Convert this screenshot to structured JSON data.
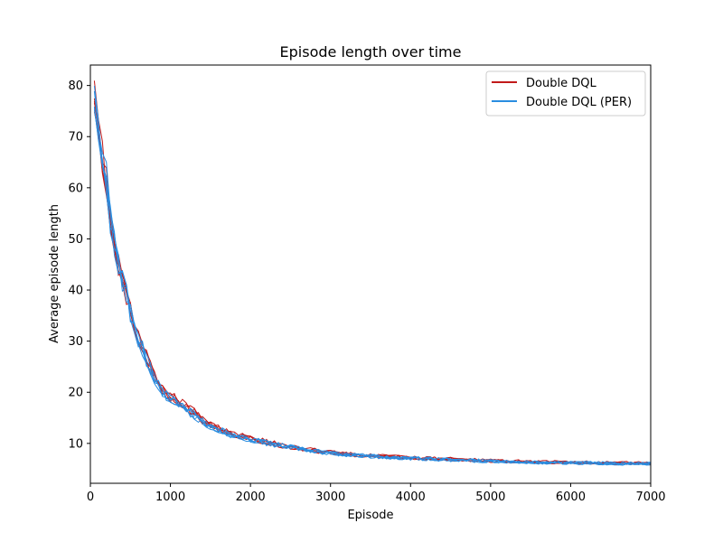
{
  "chart_data": {
    "type": "line",
    "title": "Episode length over time",
    "xlabel": "Episode",
    "ylabel": "Average episode length",
    "xlim": [
      0,
      7000
    ],
    "ylim": [
      2.2,
      84.0
    ],
    "xticks": [
      0,
      1000,
      2000,
      3000,
      4000,
      5000,
      6000,
      7000
    ],
    "yticks": [
      10,
      20,
      30,
      40,
      50,
      60,
      70,
      80
    ],
    "grid": false,
    "legend_position": "top-right",
    "series": [
      {
        "name": "Double DQL",
        "color": "#c21a1a",
        "runs": 5,
        "points": [
          [
            50,
            77
          ],
          [
            100,
            71
          ],
          [
            150,
            66
          ],
          [
            200,
            61
          ],
          [
            250,
            53
          ],
          [
            300,
            48
          ],
          [
            350,
            45
          ],
          [
            400,
            42
          ],
          [
            450,
            39
          ],
          [
            500,
            36
          ],
          [
            600,
            31
          ],
          [
            700,
            27
          ],
          [
            800,
            23
          ],
          [
            900,
            20.5
          ],
          [
            1000,
            19
          ],
          [
            1100,
            18.5
          ],
          [
            1200,
            17
          ],
          [
            1300,
            16
          ],
          [
            1400,
            14.5
          ],
          [
            1500,
            13.5
          ],
          [
            1600,
            13
          ],
          [
            1700,
            12.2
          ],
          [
            1800,
            11.7
          ],
          [
            2000,
            11
          ],
          [
            2200,
            10.3
          ],
          [
            2400,
            9.6
          ],
          [
            2600,
            9.1
          ],
          [
            2800,
            8.6
          ],
          [
            3000,
            8.2
          ],
          [
            3300,
            7.8
          ],
          [
            3600,
            7.5
          ],
          [
            4000,
            7.2
          ],
          [
            4500,
            6.9
          ],
          [
            5000,
            6.6
          ],
          [
            5500,
            6.4
          ],
          [
            6000,
            6.3
          ],
          [
            6500,
            6.2
          ],
          [
            7000,
            6.1
          ]
        ]
      },
      {
        "name": "Double DQL (PER)",
        "color": "#2a8de0",
        "runs": 5,
        "points": [
          [
            50,
            79
          ],
          [
            100,
            72
          ],
          [
            150,
            67
          ],
          [
            200,
            62
          ],
          [
            250,
            54
          ],
          [
            300,
            49
          ],
          [
            350,
            45.5
          ],
          [
            400,
            42
          ],
          [
            450,
            39
          ],
          [
            500,
            35.5
          ],
          [
            600,
            30.5
          ],
          [
            700,
            26.5
          ],
          [
            800,
            22.5
          ],
          [
            900,
            20
          ],
          [
            1000,
            18.5
          ],
          [
            1100,
            17.5
          ],
          [
            1200,
            16.5
          ],
          [
            1300,
            15.5
          ],
          [
            1400,
            14.3
          ],
          [
            1500,
            13.3
          ],
          [
            1600,
            12.8
          ],
          [
            1700,
            12
          ],
          [
            1800,
            11.5
          ],
          [
            2000,
            10.8
          ],
          [
            2200,
            10.1
          ],
          [
            2400,
            9.5
          ],
          [
            2600,
            9
          ],
          [
            2800,
            8.5
          ],
          [
            3000,
            8.1
          ],
          [
            3300,
            7.7
          ],
          [
            3600,
            7.4
          ],
          [
            4000,
            7.1
          ],
          [
            4500,
            6.8
          ],
          [
            5000,
            6.5
          ],
          [
            5500,
            6.3
          ],
          [
            6000,
            6.2
          ],
          [
            6500,
            6.1
          ],
          [
            7000,
            6
          ]
        ]
      }
    ]
  }
}
